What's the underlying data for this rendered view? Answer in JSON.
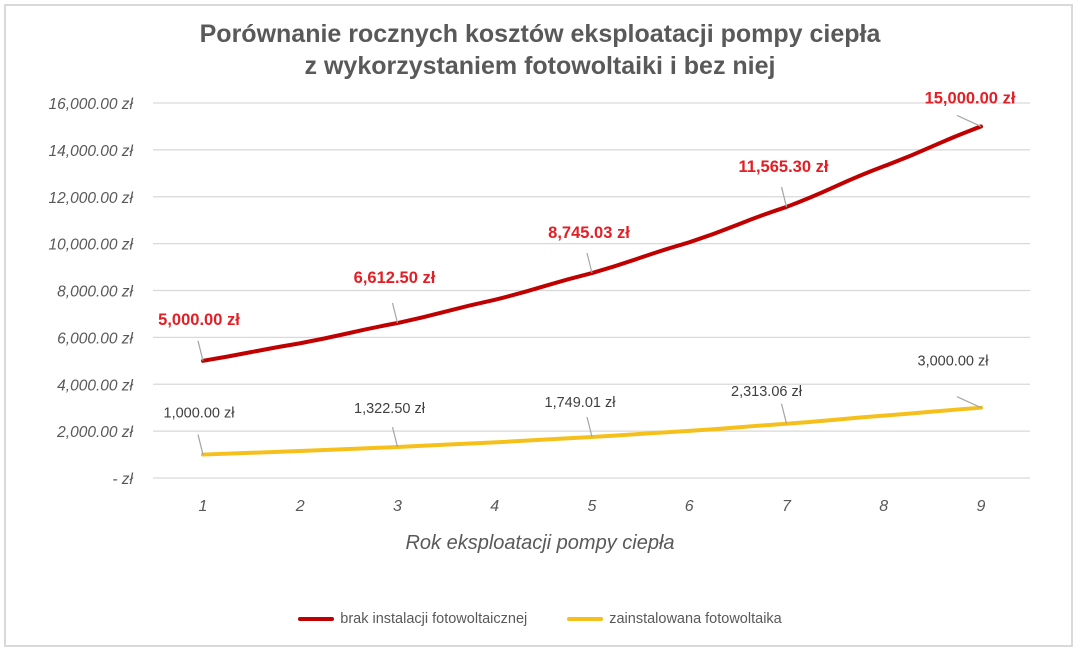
{
  "chart_data": {
    "type": "line",
    "title": "Porównanie rocznych kosztów eksploatacji pompy ciepła z wykorzystaniem fotowoltaiki i bez niej",
    "title_lines": [
      "Porównanie rocznych kosztów eksploatacji pompy ciepła",
      "z wykorzystaniem fotowoltaiki i bez niej"
    ],
    "xlabel": "Rok eksploatacji pompy ciepła",
    "ylabel": "",
    "categories": [
      1,
      2,
      3,
      4,
      5,
      6,
      7,
      8,
      9
    ],
    "ylim": [
      0,
      16000
    ],
    "yticks": [
      0,
      2000,
      4000,
      6000,
      8000,
      10000,
      12000,
      14000,
      16000
    ],
    "ytick_labels": [
      "-   zł",
      "2,000.00 zł",
      "4,000.00 zł",
      "6,000.00 zł",
      "8,000.00 zł",
      "10,000.00 zł",
      "12,000.00 zł",
      "14,000.00 zł",
      "16,000.00 zł"
    ],
    "grid": true,
    "legend_position": "bottom",
    "series": [
      {
        "name": "brak instalacji fotowoltaicznej",
        "color": "#c00000",
        "label_color": "#e31e24",
        "values": [
          5000.0,
          5750.0,
          6612.5,
          7604.38,
          8745.03,
          10056.79,
          11565.3,
          13300.1,
          15000.0
        ],
        "data_labels": [
          {
            "x": 1,
            "text": "5,000.00 zł"
          },
          {
            "x": 3,
            "text": "6,612.50 zł"
          },
          {
            "x": 5,
            "text": "8,745.03 zł"
          },
          {
            "x": 7,
            "text": "11,565.30 zł"
          },
          {
            "x": 9,
            "text": "15,000.00 zł"
          }
        ]
      },
      {
        "name": "zainstalowana fotowoltaika",
        "color": "#f5c01b",
        "label_color": "#404040",
        "values": [
          1000.0,
          1150.0,
          1322.5,
          1520.88,
          1749.01,
          2011.36,
          2313.06,
          2660.02,
          3000.0
        ],
        "data_labels": [
          {
            "x": 1,
            "text": "1,000.00 zł"
          },
          {
            "x": 3,
            "text": "1,322.50 zł"
          },
          {
            "x": 5,
            "text": "1,749.01 zł"
          },
          {
            "x": 7,
            "text": "2,313.06 zł"
          },
          {
            "x": 9,
            "text": "3,000.00 zł"
          }
        ]
      }
    ]
  },
  "legend": {
    "items": [
      {
        "label": "brak instalacji fotowoltaicznej",
        "color": "#c00000"
      },
      {
        "label": "zainstalowana fotowoltaika",
        "color": "#f5c01b"
      }
    ]
  }
}
